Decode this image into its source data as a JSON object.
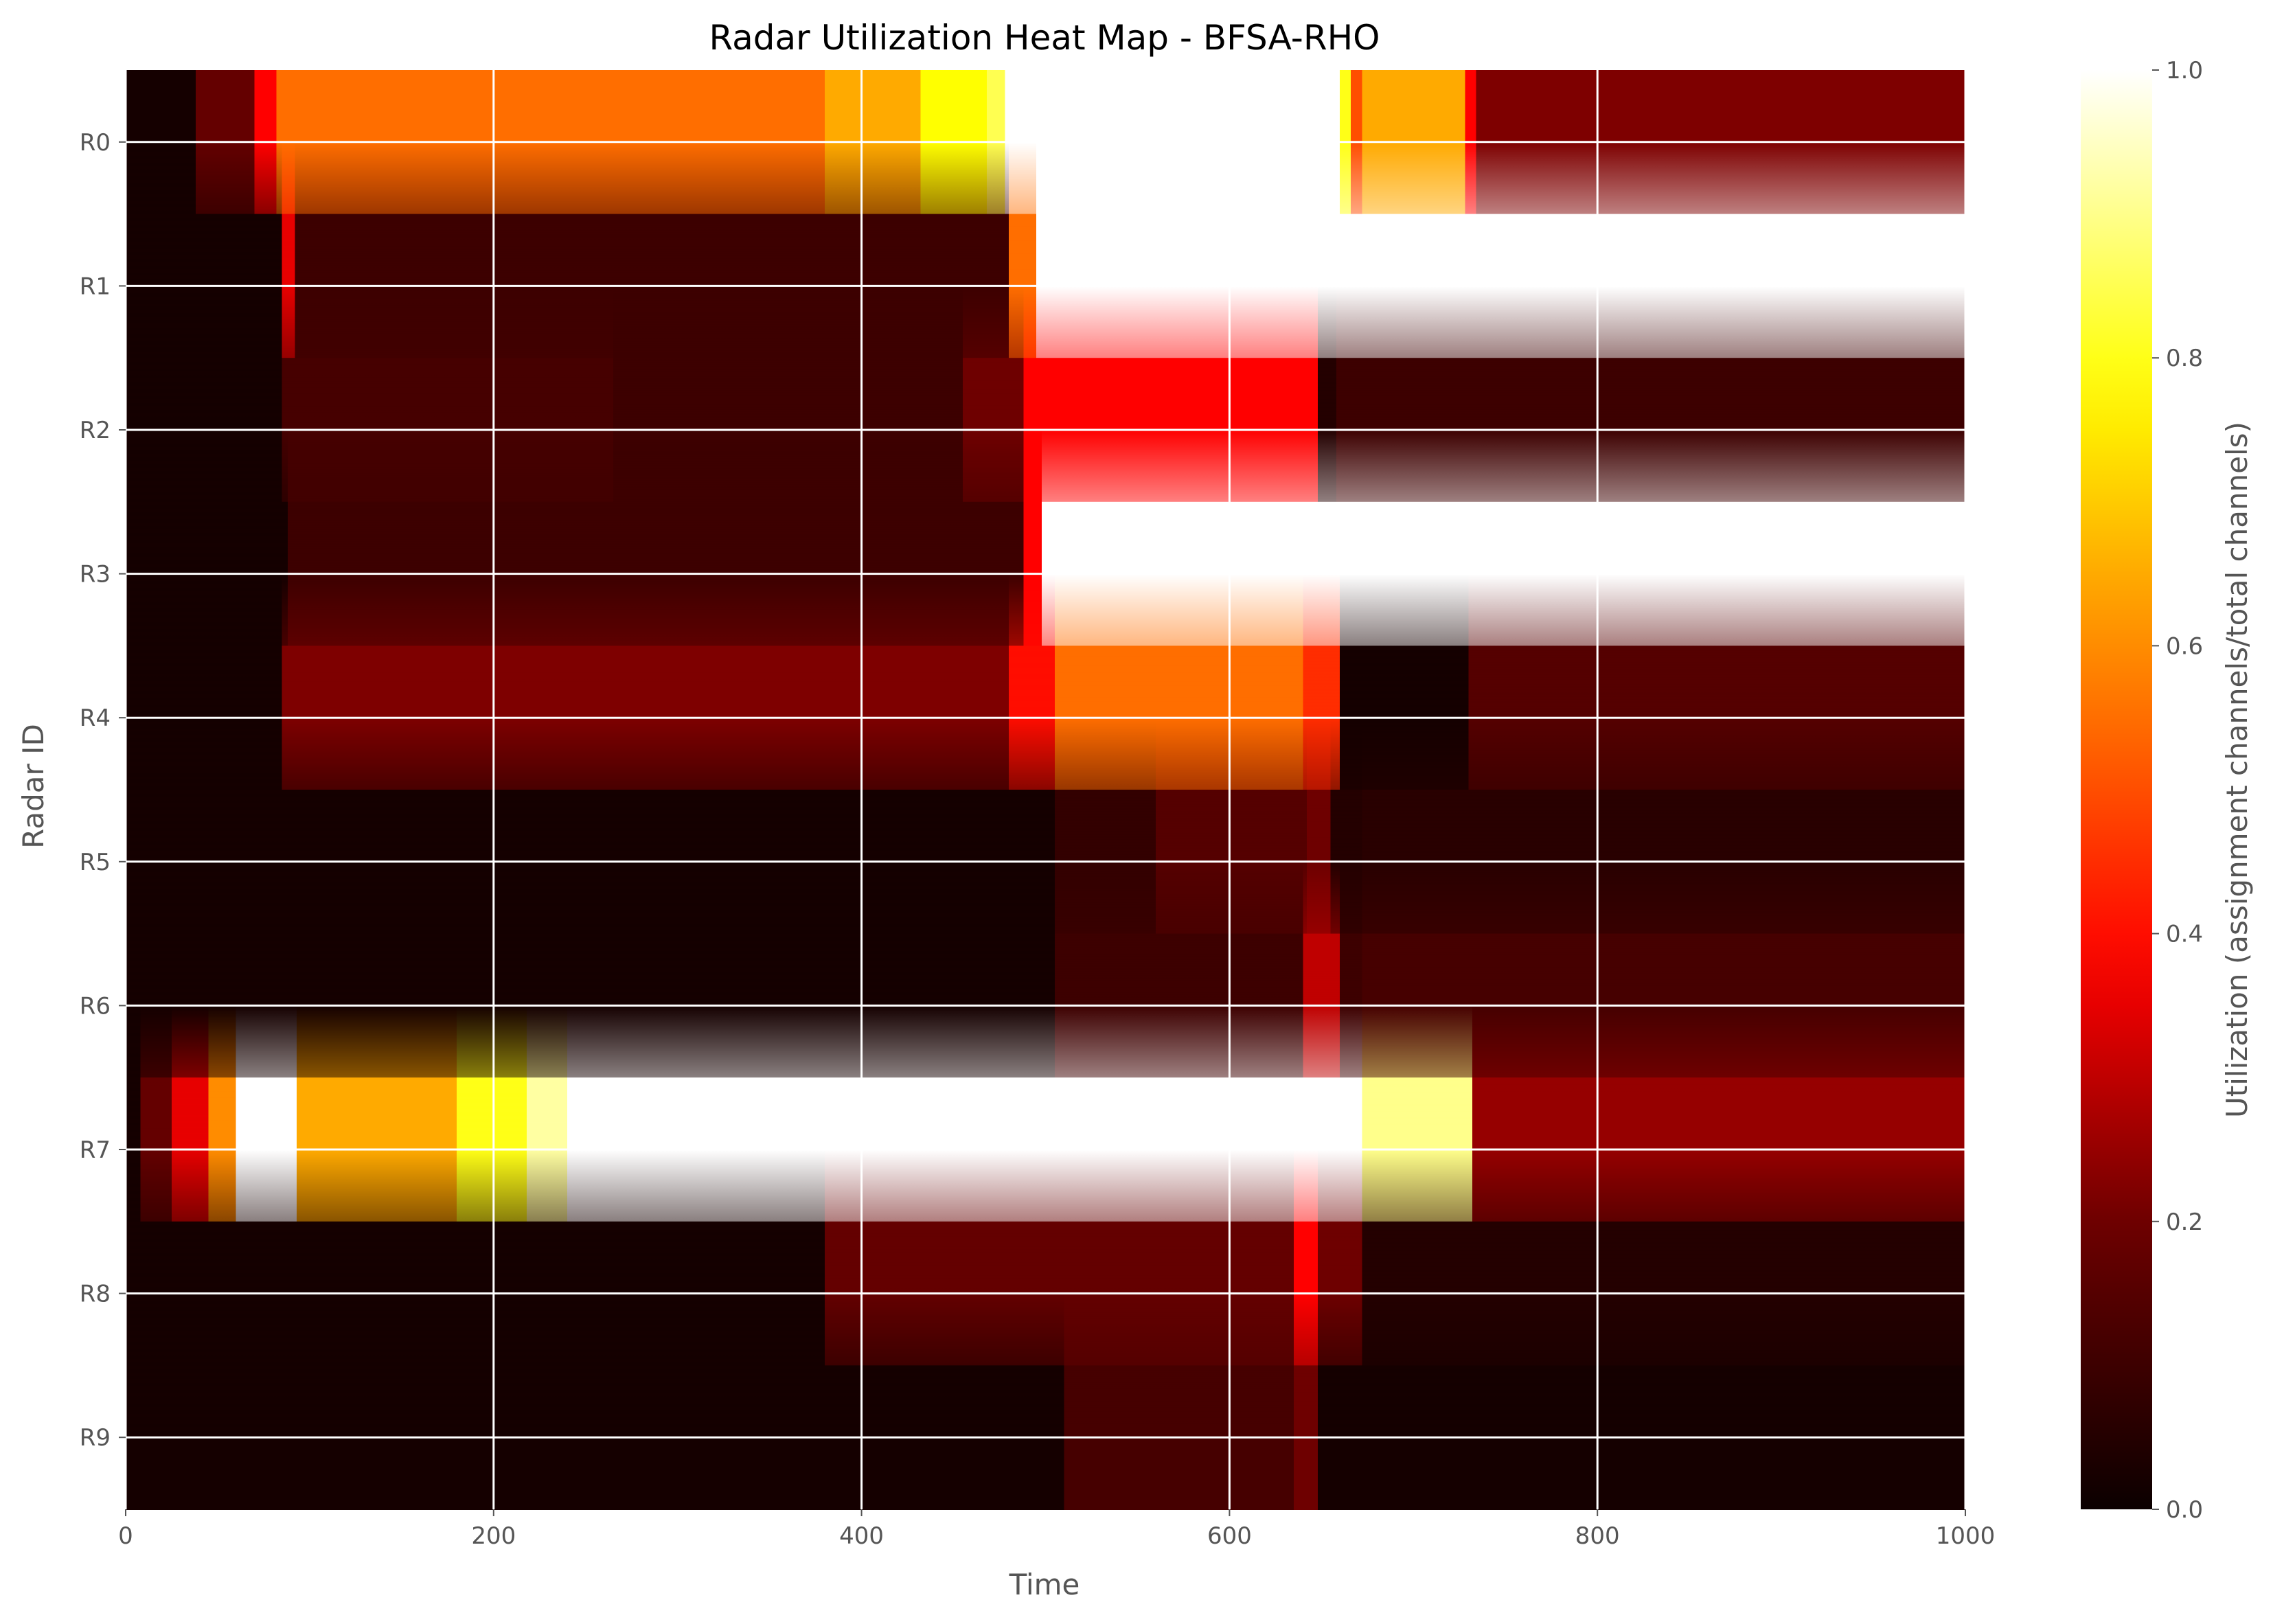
{
  "chart_data": {
    "type": "heatmap",
    "title": "Radar Utilization Heat Map - BFSA-RHO",
    "xlabel": "Time",
    "ylabel": "Radar ID",
    "xlim": [
      0,
      1000
    ],
    "xticks": [
      0,
      200,
      400,
      600,
      800,
      1000
    ],
    "categories": [
      "R0",
      "R1",
      "R2",
      "R3",
      "R4",
      "R5",
      "R6",
      "R7",
      "R8",
      "R9"
    ],
    "colorbar": {
      "label": "Utilization (assignment channels/total channels)",
      "range": [
        0,
        1
      ],
      "ticks": [
        "0.0",
        "0.2",
        "0.4",
        "0.6",
        "0.8",
        "1.0"
      ],
      "colormap": "hot",
      "colors": [
        "#0b0000",
        "#6e0000",
        "#ff0000",
        "#ff8a00",
        "#ffff00",
        "#ffffff"
      ]
    },
    "grid": true,
    "interpolation": "bilinear",
    "series": [
      {
        "name": "R0",
        "segments": [
          [
            0,
            0.02
          ],
          [
            38,
            0.18
          ],
          [
            70,
            0.38
          ],
          [
            82,
            0.55
          ],
          [
            380,
            0.65
          ],
          [
            432,
            0.78
          ],
          [
            468,
            0.85
          ],
          [
            478,
            1.0
          ],
          [
            660,
            0.8
          ],
          [
            666,
            0.5
          ],
          [
            672,
            0.65
          ],
          [
            728,
            0.38
          ],
          [
            734,
            0.22
          ],
          [
            1000,
            0.22
          ]
        ]
      },
      {
        "name": "R1",
        "segments": [
          [
            0,
            0.02
          ],
          [
            85,
            0.35
          ],
          [
            92,
            0.1
          ],
          [
            480,
            0.55
          ],
          [
            495,
            1.0
          ],
          [
            662,
            1.0
          ],
          [
            1000,
            1.0
          ]
        ]
      },
      {
        "name": "R2",
        "segments": [
          [
            0,
            0.02
          ],
          [
            85,
            0.12
          ],
          [
            265,
            0.1
          ],
          [
            455,
            0.2
          ],
          [
            488,
            0.38
          ],
          [
            640,
            0.38
          ],
          [
            648,
            0.05
          ],
          [
            658,
            0.1
          ],
          [
            672,
            0.1
          ],
          [
            1000,
            0.1
          ]
        ]
      },
      {
        "name": "R3",
        "segments": [
          [
            0,
            0.02
          ],
          [
            88,
            0.1
          ],
          [
            488,
            0.38
          ],
          [
            498,
            1.0
          ],
          [
            655,
            1.0
          ],
          [
            1000,
            1.0
          ]
        ]
      },
      {
        "name": "R4",
        "segments": [
          [
            0,
            0.02
          ],
          [
            85,
            0.22
          ],
          [
            480,
            0.4
          ],
          [
            505,
            0.55
          ],
          [
            640,
            0.45
          ],
          [
            660,
            0.02
          ],
          [
            730,
            0.15
          ],
          [
            1000,
            0.15
          ]
        ]
      },
      {
        "name": "R5",
        "segments": [
          [
            0,
            0.02
          ],
          [
            505,
            0.08
          ],
          [
            560,
            0.15
          ],
          [
            642,
            0.2
          ],
          [
            655,
            0.05
          ],
          [
            672,
            0.06
          ],
          [
            1000,
            0.06
          ]
        ]
      },
      {
        "name": "R6",
        "segments": [
          [
            0,
            0.02
          ],
          [
            505,
            0.1
          ],
          [
            640,
            0.3
          ],
          [
            660,
            0.1
          ],
          [
            672,
            0.12
          ],
          [
            1000,
            0.12
          ]
        ]
      },
      {
        "name": "R7",
        "segments": [
          [
            0,
            0.02
          ],
          [
            8,
            0.18
          ],
          [
            25,
            0.35
          ],
          [
            45,
            0.6
          ],
          [
            60,
            1.0
          ],
          [
            93,
            0.65
          ],
          [
            180,
            0.8
          ],
          [
            218,
            0.92
          ],
          [
            240,
            1.0
          ],
          [
            672,
            0.9
          ],
          [
            732,
            0.25
          ],
          [
            1000,
            0.25
          ]
        ]
      },
      {
        "name": "R8",
        "segments": [
          [
            0,
            0.02
          ],
          [
            380,
            0.18
          ],
          [
            510,
            0.18
          ],
          [
            635,
            0.38
          ],
          [
            648,
            0.2
          ],
          [
            672,
            0.05
          ],
          [
            1000,
            0.03
          ]
        ]
      },
      {
        "name": "R9",
        "segments": [
          [
            0,
            0.02
          ],
          [
            510,
            0.12
          ],
          [
            635,
            0.2
          ],
          [
            648,
            0.02
          ],
          [
            672,
            0.02
          ],
          [
            1000,
            0.02
          ]
        ]
      }
    ]
  }
}
